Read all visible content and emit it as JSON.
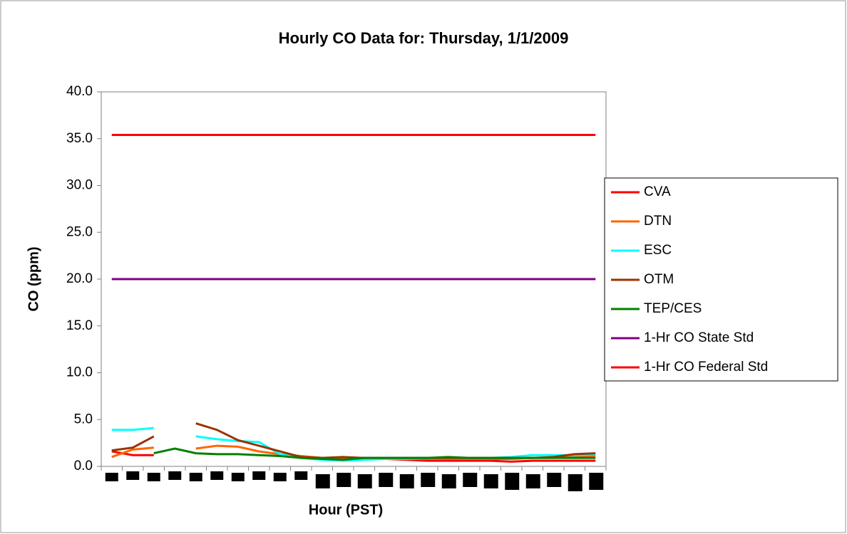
{
  "chart_data": {
    "type": "line",
    "title": "Hourly CO Data for: Thursday, 1/1/2009",
    "x_label": "Hour (PST)",
    "y_label": "CO (ppm)",
    "categories": [
      null,
      null,
      null,
      null,
      null,
      null,
      null,
      null,
      null,
      null,
      null,
      null,
      null,
      null,
      null,
      null,
      null,
      null,
      null,
      null,
      null,
      null,
      null,
      null
    ],
    "ylim": [
      0,
      40
    ],
    "yticks": [
      {
        "value": 0,
        "label": "0.0"
      },
      {
        "value": 5,
        "label": "5.0"
      },
      {
        "value": 10,
        "label": "10.0"
      },
      {
        "value": 15,
        "label": "15.0"
      },
      {
        "value": 20,
        "label": "20.0"
      },
      {
        "value": 25,
        "label": "25.0"
      },
      {
        "value": 30,
        "label": "30.0"
      },
      {
        "value": 35,
        "label": "35.0"
      },
      {
        "value": 40,
        "label": "40.0"
      }
    ],
    "legend": "right",
    "series": [
      {
        "name": "CVA",
        "color": "#ff0000",
        "values": [
          1.6,
          1.2,
          1.2,
          null,
          null,
          null,
          null,
          null,
          null,
          null,
          0.9,
          0.8,
          0.9,
          0.8,
          0.7,
          0.6,
          0.6,
          0.6,
          0.6,
          0.5,
          0.6,
          0.6,
          0.6,
          0.6
        ]
      },
      {
        "name": "DTN",
        "color": "#ff6600",
        "values": [
          1.0,
          1.8,
          2.0,
          null,
          1.9,
          2.2,
          2.1,
          1.6,
          1.3,
          1.1,
          0.9,
          0.9,
          0.8,
          0.8,
          0.8,
          0.8,
          0.8,
          0.8,
          0.8,
          0.8,
          0.9,
          0.9,
          1.0,
          1.1
        ]
      },
      {
        "name": "ESC",
        "color": "#00ffff",
        "values": [
          3.9,
          3.9,
          4.1,
          null,
          3.2,
          2.9,
          2.7,
          2.6,
          1.3,
          0.9,
          0.7,
          0.6,
          0.7,
          0.8,
          0.8,
          0.9,
          0.9,
          0.9,
          0.9,
          1.0,
          1.2,
          1.2,
          1.2,
          1.3
        ]
      },
      {
        "name": "OTM",
        "color": "#993300",
        "values": [
          1.7,
          2.0,
          3.2,
          null,
          4.6,
          3.9,
          2.8,
          2.2,
          1.6,
          1.0,
          0.9,
          1.0,
          0.9,
          0.9,
          0.9,
          0.9,
          0.9,
          0.9,
          0.9,
          0.9,
          0.9,
          1.0,
          1.3,
          1.4
        ]
      },
      {
        "name": "TEP/CES",
        "color": "#008000",
        "values": [
          null,
          null,
          1.4,
          1.9,
          1.4,
          1.3,
          1.3,
          1.2,
          1.1,
          0.9,
          0.8,
          0.7,
          0.9,
          0.9,
          0.9,
          0.9,
          1.0,
          0.9,
          0.9,
          0.9,
          0.9,
          0.9,
          0.9,
          0.9
        ]
      },
      {
        "name": "1-Hr CO State Std",
        "color": "#800080",
        "values": [
          20,
          20,
          20,
          20,
          20,
          20,
          20,
          20,
          20,
          20,
          20,
          20,
          20,
          20,
          20,
          20,
          20,
          20,
          20,
          20,
          20,
          20,
          20,
          20
        ]
      },
      {
        "name": "1-Hr CO Federal Std",
        "color": "#ff0000",
        "values": [
          35.4,
          35.4,
          35.4,
          35.4,
          35.4,
          35.4,
          35.4,
          35.4,
          35.4,
          35.4,
          35.4,
          35.4,
          35.4,
          35.4,
          35.4,
          35.4,
          35.4,
          35.4,
          35.4,
          35.4,
          35.4,
          35.4,
          35.4,
          35.4
        ]
      }
    ]
  }
}
